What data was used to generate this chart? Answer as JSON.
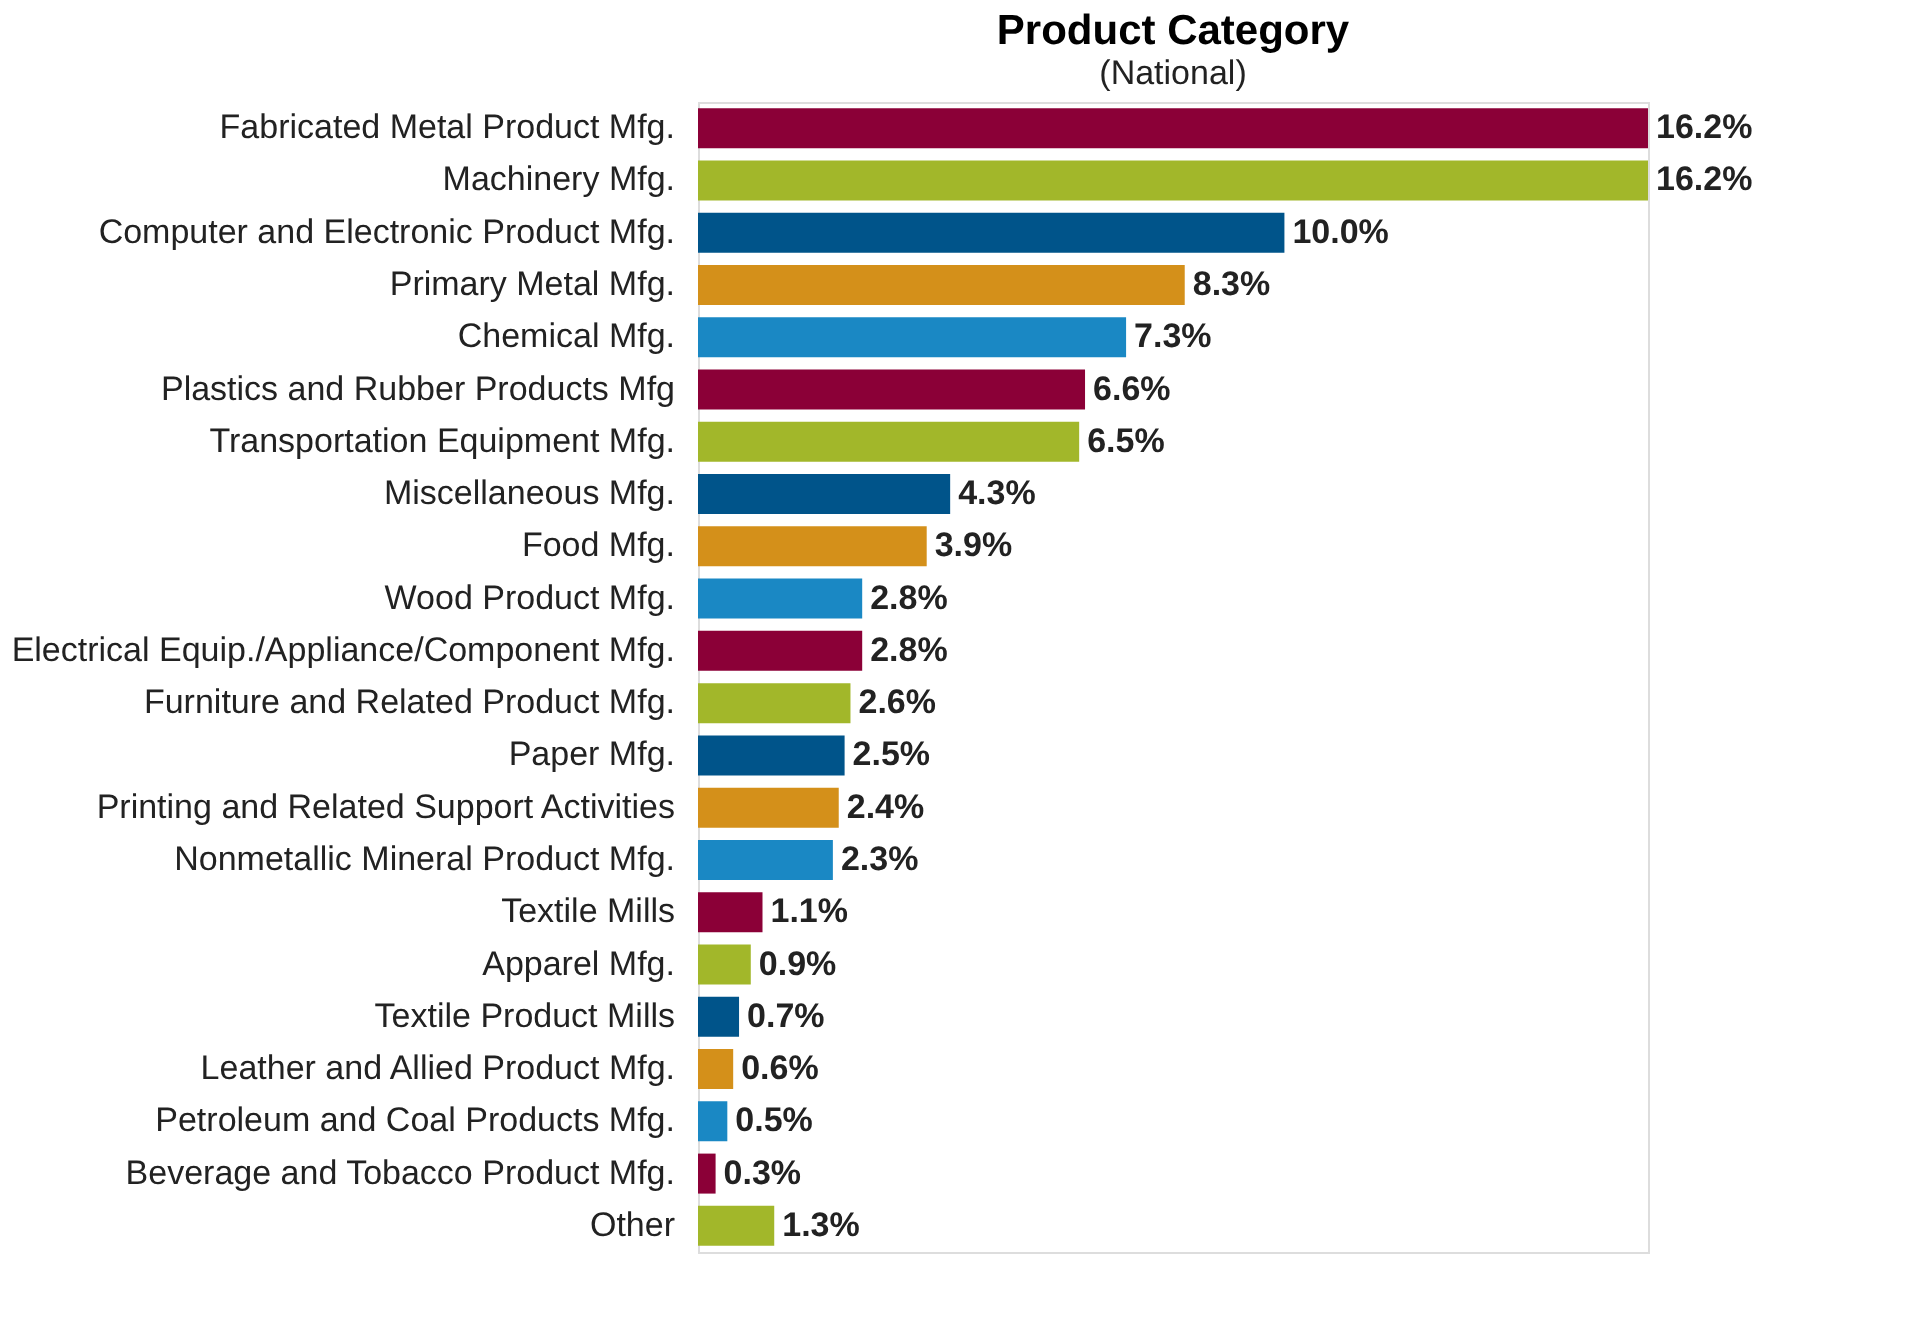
{
  "chart_data": {
    "type": "bar",
    "orientation": "horizontal",
    "title": "Product Category",
    "subtitle": "(National)",
    "categories": [
      "Fabricated Metal Product Mfg.",
      "Machinery Mfg.",
      "Computer and Electronic Product Mfg.",
      "Primary Metal Mfg.",
      "Chemical Mfg.",
      "Plastics and Rubber Products Mfg",
      "Transportation Equipment Mfg.",
      "Miscellaneous Mfg.",
      "Food Mfg.",
      "Wood Product Mfg.",
      "Electrical Equip./Appliance/Component Mfg.",
      "Furniture and Related Product Mfg.",
      "Paper Mfg.",
      "Printing and Related Support Activities",
      "Nonmetallic Mineral Product Mfg.",
      "Textile Mills",
      "Apparel Mfg.",
      "Textile Product Mills",
      "Leather and Allied Product Mfg.",
      "Petroleum and Coal Products Mfg.",
      "Beverage and Tobacco Product Mfg.",
      "Other"
    ],
    "values": [
      16.2,
      16.2,
      10.0,
      8.3,
      7.3,
      6.6,
      6.5,
      4.3,
      3.9,
      2.8,
      2.8,
      2.6,
      2.5,
      2.4,
      2.3,
      1.1,
      0.9,
      0.7,
      0.6,
      0.5,
      0.3,
      1.3
    ],
    "value_labels": [
      "16.2%",
      "16.2%",
      "10.0%",
      "8.3%",
      "7.3%",
      "6.6%",
      "6.5%",
      "4.3%",
      "3.9%",
      "2.8%",
      "2.8%",
      "2.6%",
      "2.5%",
      "2.4%",
      "2.3%",
      "1.1%",
      "0.9%",
      "0.7%",
      "0.6%",
      "0.5%",
      "0.3%",
      "1.3%"
    ],
    "colors": [
      "#8b0037",
      "#a2b72a",
      "#00548a",
      "#d4901a",
      "#1a88c4",
      "#8b0037",
      "#a2b72a",
      "#00548a",
      "#d4901a",
      "#1a88c4",
      "#8b0037",
      "#a2b72a",
      "#00548a",
      "#d4901a",
      "#1a88c4",
      "#8b0037",
      "#a2b72a",
      "#00548a",
      "#d4901a",
      "#1a88c4",
      "#8b0037",
      "#a2b72a"
    ]
  }
}
